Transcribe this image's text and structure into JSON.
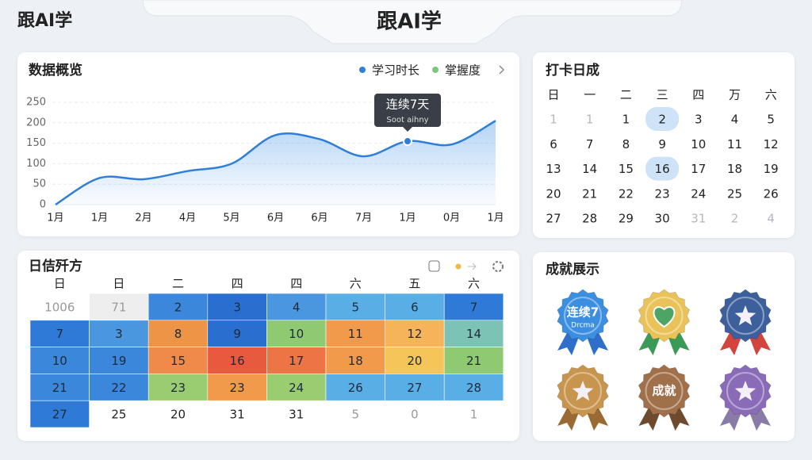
{
  "header": {
    "logo": "跟AI学",
    "title": "跟AI学"
  },
  "chart_data": {
    "type": "line",
    "title": "数据概览",
    "categories": [
      "1月",
      "1月",
      "2月",
      "4月",
      "5月",
      "6月",
      "6月",
      "7月",
      "1月",
      "0月",
      "1月"
    ],
    "series": [
      {
        "name": "学习时长",
        "color": "#2f7fd8",
        "values": [
          0,
          65,
          62,
          82,
          100,
          170,
          160,
          118,
          155,
          147,
          205
        ]
      }
    ],
    "legend_items": [
      {
        "name": "掌握度",
        "color": "#7cc67d"
      }
    ],
    "annotation": {
      "index": 8,
      "title": "连续7天",
      "subtitle": "Soot aihny"
    },
    "ylim": [
      0,
      250
    ],
    "yticks": [
      0,
      50,
      100,
      150,
      200,
      250
    ],
    "grid": true
  },
  "calendar": {
    "title": "打卡日成",
    "weekdays": [
      "日",
      "一",
      "二",
      "三",
      "四",
      "万",
      "六"
    ],
    "rows": [
      [
        {
          "text": "1",
          "muted": true
        },
        {
          "text": "1",
          "muted": true
        },
        {
          "text": "1"
        },
        {
          "text": "2",
          "highlight": true
        },
        {
          "text": "3"
        },
        {
          "text": "4"
        },
        {
          "text": "5"
        }
      ],
      [
        {
          "text": "6"
        },
        {
          "text": "7"
        },
        {
          "text": "8"
        },
        {
          "text": "9"
        },
        {
          "text": "10"
        },
        {
          "text": "11"
        },
        {
          "text": "12"
        }
      ],
      [
        {
          "text": "13"
        },
        {
          "text": "14"
        },
        {
          "text": "15"
        },
        {
          "text": "16",
          "highlight": true
        },
        {
          "text": "17"
        },
        {
          "text": "18"
        },
        {
          "text": "19"
        }
      ],
      [
        {
          "text": "20"
        },
        {
          "text": "21"
        },
        {
          "text": "22"
        },
        {
          "text": "23"
        },
        {
          "text": "24"
        },
        {
          "text": "25"
        },
        {
          "text": "26"
        }
      ],
      [
        {
          "text": "27"
        },
        {
          "text": "28"
        },
        {
          "text": "29"
        },
        {
          "text": "30"
        },
        {
          "text": "31",
          "muted": true
        },
        {
          "text": "2",
          "muted": true
        },
        {
          "text": "4",
          "muted": true
        }
      ]
    ]
  },
  "heatmap": {
    "title": "日佶歼方",
    "columns": [
      "日",
      "日",
      "二",
      "四",
      "四",
      "六",
      "五",
      "六"
    ],
    "rows": [
      [
        {
          "text": "1006",
          "muted": true
        },
        {
          "text": "71",
          "muted": true,
          "color": "#eeeeee"
        },
        {
          "text": "2",
          "color": "#3b87db"
        },
        {
          "text": "3",
          "color": "#2a6fd0"
        },
        {
          "text": "4",
          "color": "#4a97e0"
        },
        {
          "text": "5",
          "color": "#5aaee6"
        },
        {
          "text": "6",
          "color": "#5aaee6"
        },
        {
          "text": "7",
          "color": "#2f7ad6"
        }
      ],
      [
        {
          "text": "7",
          "color": "#2f7ad6"
        },
        {
          "text": "3",
          "color": "#4a97e0"
        },
        {
          "text": "8",
          "color": "#ee9447"
        },
        {
          "text": "9",
          "color": "#2a6fd0"
        },
        {
          "text": "10",
          "color": "#8fca72"
        },
        {
          "text": "11",
          "color": "#f29a4c"
        },
        {
          "text": "12",
          "color": "#f5b45a"
        },
        {
          "text": "14",
          "color": "#7cc3b5"
        }
      ],
      [
        {
          "text": "10",
          "color": "#3b87db"
        },
        {
          "text": "19",
          "color": "#3b87db"
        },
        {
          "text": "15",
          "color": "#f08a4a"
        },
        {
          "text": "16",
          "color": "#e85a3e"
        },
        {
          "text": "17",
          "color": "#ec7445"
        },
        {
          "text": "18",
          "color": "#f29a4c"
        },
        {
          "text": "20",
          "color": "#f5c55a"
        },
        {
          "text": "21",
          "color": "#8fca72"
        }
      ],
      [
        {
          "text": "21",
          "color": "#3b87db"
        },
        {
          "text": "22",
          "color": "#3b87db"
        },
        {
          "text": "23",
          "color": "#9acd72"
        },
        {
          "text": "23",
          "color": "#f29a4c"
        },
        {
          "text": "24",
          "color": "#9acd72"
        },
        {
          "text": "26",
          "color": "#5aaee6"
        },
        {
          "text": "27",
          "color": "#5aaee6"
        },
        {
          "text": "28",
          "color": "#5aaee6"
        }
      ],
      [
        {
          "text": "27",
          "color": "#2f7ad6"
        },
        {
          "text": "25"
        },
        {
          "text": "20"
        },
        {
          "text": "31"
        },
        {
          "text": "31"
        },
        {
          "text": "5",
          "muted": true
        },
        {
          "text": "0",
          "muted": true
        },
        {
          "text": "1",
          "muted": true
        }
      ]
    ]
  },
  "achievements": {
    "title": "成就展示",
    "badges": [
      {
        "color": "#3b8ee0",
        "ribbon": "#2f6fc9",
        "label": "连续7",
        "sub": "Drcma"
      },
      {
        "color": "#e9c35a",
        "ribbon": "#3a9a56",
        "icon": "heart"
      },
      {
        "color": "#3d5f9c",
        "ribbon": "#d2443c",
        "icon": "star"
      },
      {
        "color": "#c8954e",
        "ribbon": "#9a6a35",
        "icon": "star"
      },
      {
        "color": "#a0704a",
        "ribbon": "#6e4a2f",
        "label": "成就"
      },
      {
        "color": "#8a6bb8",
        "ribbon": "#8a7aa8",
        "icon": "star"
      }
    ]
  }
}
